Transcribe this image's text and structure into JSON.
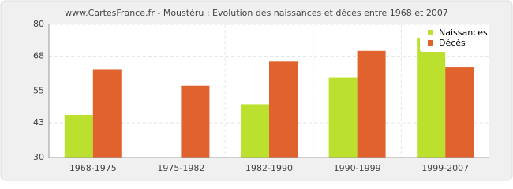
{
  "chart_data": {
    "type": "bar",
    "title": "www.CartesFrance.fr - Moustéru : Evolution des naissances et décès entre 1968 et 2007",
    "categories": [
      "1968-1975",
      "1975-1982",
      "1982-1990",
      "1990-1999",
      "1999-2007"
    ],
    "series": [
      {
        "name": "Naissances",
        "color": "#bce02e",
        "values": [
          46,
          30,
          50,
          60,
          75
        ]
      },
      {
        "name": "Décès",
        "color": "#e0632e",
        "values": [
          63,
          57,
          66,
          70,
          64
        ]
      }
    ],
    "ylim": [
      30,
      80
    ],
    "yticks": [
      30,
      43,
      55,
      68,
      80
    ],
    "grid": true,
    "legend": "top-right"
  }
}
